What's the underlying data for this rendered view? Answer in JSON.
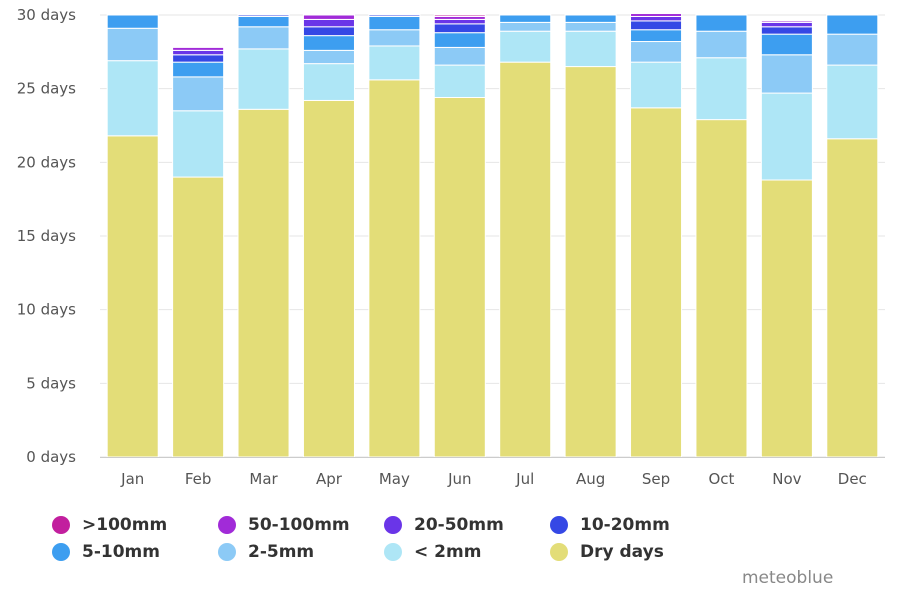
{
  "chart_data": {
    "type": "bar",
    "stacked": true,
    "categories": [
      "Jan",
      "Feb",
      "Mar",
      "Apr",
      "May",
      "Jun",
      "Jul",
      "Aug",
      "Sep",
      "Oct",
      "Nov",
      "Dec"
    ],
    "y_tick_labels": [
      "0 days",
      "5 days",
      "10 days",
      "15 days",
      "20 days",
      "25 days",
      "30 days"
    ],
    "ylim": [
      0,
      30
    ],
    "grid": true,
    "legend_position": "bottom",
    "series": [
      {
        "name": "Dry days",
        "color": "#e3dd78",
        "values": [
          21.8,
          19.0,
          23.6,
          24.2,
          25.6,
          24.4,
          26.8,
          26.5,
          23.7,
          22.9,
          18.8,
          21.6
        ]
      },
      {
        "name": "< 2mm",
        "color": "#aee6f6",
        "values": [
          5.1,
          4.5,
          4.1,
          2.5,
          2.3,
          2.2,
          2.1,
          2.4,
          3.1,
          4.2,
          5.9,
          5.0
        ]
      },
      {
        "name": "2-5mm",
        "color": "#8ccaf6",
        "values": [
          2.2,
          2.3,
          1.5,
          0.9,
          1.1,
          1.2,
          0.6,
          0.6,
          1.4,
          1.8,
          2.6,
          2.1
        ]
      },
      {
        "name": "5-10mm",
        "color": "#3d9ef0",
        "values": [
          0.9,
          1.0,
          0.7,
          1.0,
          0.9,
          1.0,
          0.5,
          0.5,
          0.8,
          1.1,
          1.4,
          1.3
        ]
      },
      {
        "name": "10-20mm",
        "color": "#3548e5",
        "values": [
          0.0,
          0.5,
          0.1,
          0.6,
          0.1,
          0.6,
          0.0,
          0.0,
          0.6,
          0.0,
          0.5,
          0.0
        ]
      },
      {
        "name": "20-50mm",
        "color": "#6a35e8",
        "values": [
          0.0,
          0.3,
          0.0,
          0.5,
          0.0,
          0.3,
          0.0,
          0.0,
          0.3,
          0.0,
          0.3,
          0.0
        ]
      },
      {
        "name": "50-100mm",
        "color": "#a12bd8",
        "values": [
          0.0,
          0.2,
          0.0,
          0.3,
          0.0,
          0.2,
          0.0,
          0.0,
          0.2,
          0.0,
          0.1,
          0.0
        ]
      },
      {
        "name": ">100mm",
        "color": "#c21f9e",
        "values": [
          0.0,
          0.0,
          0.0,
          0.0,
          0.0,
          0.1,
          0.0,
          0.0,
          0.0,
          0.0,
          0.0,
          0.0
        ]
      }
    ]
  },
  "legend": [
    {
      "label": ">100mm",
      "color": "#c21f9e"
    },
    {
      "label": "50-100mm",
      "color": "#a12bd8"
    },
    {
      "label": "20-50mm",
      "color": "#6a35e8"
    },
    {
      "label": "10-20mm",
      "color": "#3548e5"
    },
    {
      "label": "5-10mm",
      "color": "#3d9ef0"
    },
    {
      "label": "2-5mm",
      "color": "#8ccaf6"
    },
    {
      "label": "< 2mm",
      "color": "#aee6f6"
    },
    {
      "label": "Dry days",
      "color": "#e3dd78"
    }
  ],
  "credit": "meteoblue"
}
